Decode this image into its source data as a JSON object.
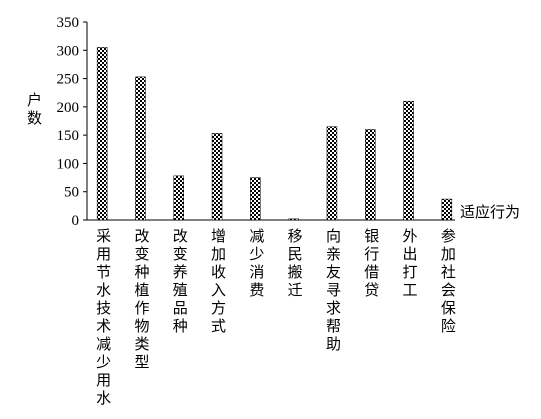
{
  "chart_data": {
    "type": "bar",
    "y_label": "户数",
    "x_label": "适应行为",
    "categories": [
      "采用节水技术减少用水",
      "改变种植作物类型",
      "改变养殖品种",
      "增加收入方式",
      "减少消费",
      "移民搬迁",
      "向亲友寻求帮助",
      "银行借贷",
      "外出打工",
      "参加社会保险"
    ],
    "values": [
      305,
      253,
      78,
      153,
      75,
      2,
      165,
      160,
      210,
      37
    ],
    "color": "#000000",
    "ylim": [
      0,
      350
    ],
    "yticks": [
      0,
      50,
      100,
      150,
      200,
      250,
      300,
      350
    ],
    "grid": false
  }
}
